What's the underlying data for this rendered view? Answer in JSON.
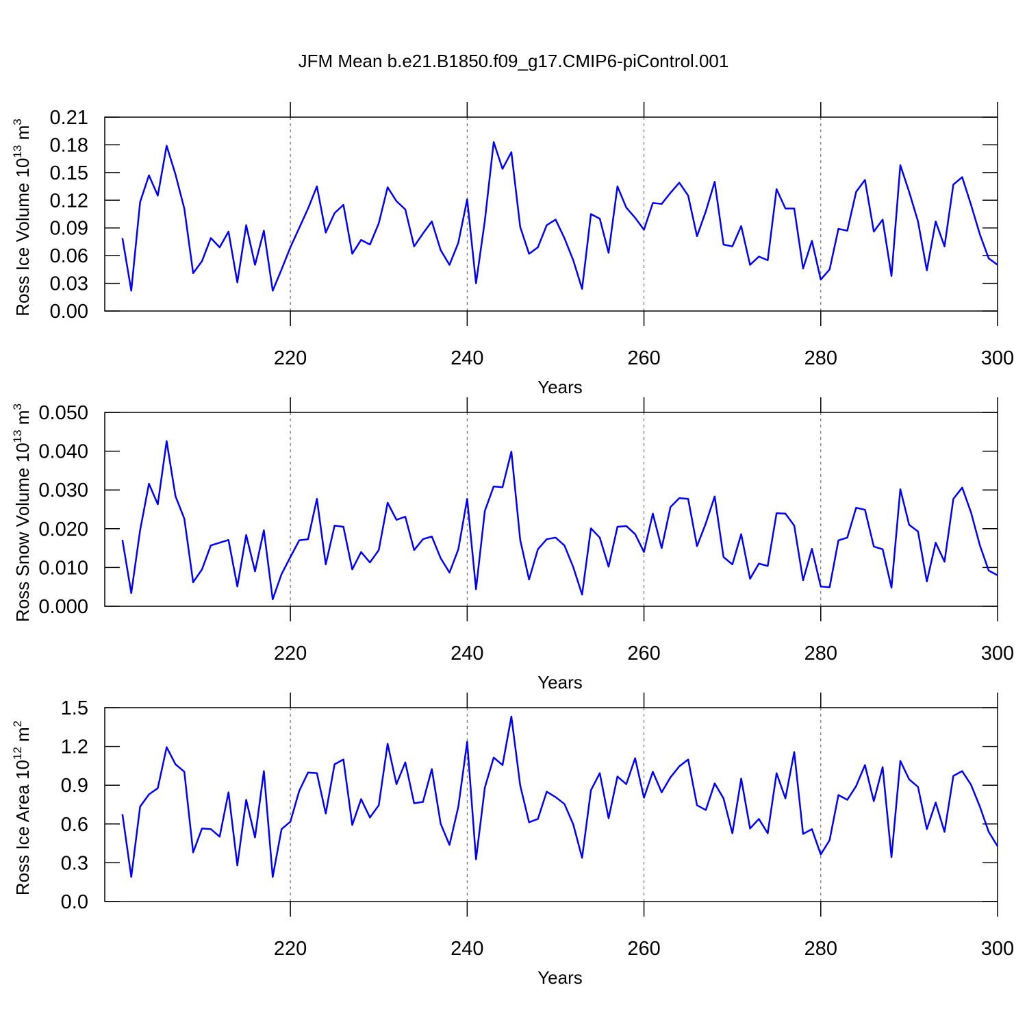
{
  "title": "JFM Mean b.e21.B1850.f09_g17.CMIP6-piControl.001",
  "chart_data": [
    {
      "type": "line",
      "ylabel": [
        "Ross Ice Volume 10",
        "13",
        " m",
        "3"
      ],
      "xlabel": "Years",
      "x": [
        201,
        202,
        203,
        204,
        205,
        206,
        207,
        208,
        209,
        210,
        211,
        212,
        213,
        214,
        215,
        216,
        217,
        218,
        219,
        220,
        221,
        222,
        223,
        224,
        225,
        226,
        227,
        228,
        229,
        230,
        231,
        232,
        233,
        234,
        235,
        236,
        237,
        238,
        239,
        240,
        241,
        242,
        243,
        244,
        245,
        246,
        247,
        248,
        249,
        250,
        251,
        252,
        253,
        254,
        255,
        256,
        257,
        258,
        259,
        260,
        261,
        262,
        263,
        264,
        265,
        266,
        267,
        268,
        269,
        270,
        271,
        272,
        273,
        274,
        275,
        276,
        277,
        278,
        279,
        280,
        281,
        282,
        283,
        284,
        285,
        286,
        287,
        288,
        289,
        290,
        291,
        292,
        293,
        294,
        295,
        296,
        297,
        298,
        299,
        300
      ],
      "series": [
        {
          "color": "#0000ff",
          "values": [
            0.079,
            0.022,
            0.118,
            0.147,
            0.125,
            0.179,
            0.148,
            0.111,
            0.041,
            0.054,
            0.079,
            0.069,
            0.086,
            0.031,
            0.093,
            0.05,
            0.087,
            0.022,
            0.045,
            0.069,
            0.09,
            0.111,
            0.135,
            0.085,
            0.106,
            0.115,
            0.062,
            0.077,
            0.072,
            0.095,
            0.134,
            0.119,
            0.11,
            0.07,
            0.084,
            0.097,
            0.066,
            0.05,
            0.074,
            0.121,
            0.03,
            0.098,
            0.183,
            0.154,
            0.172,
            0.091,
            0.062,
            0.069,
            0.093,
            0.099,
            0.079,
            0.055,
            0.024,
            0.105,
            0.1,
            0.063,
            0.135,
            0.112,
            0.101,
            0.088,
            0.117,
            0.116,
            0.128,
            0.139,
            0.125,
            0.081,
            0.108,
            0.14,
            0.072,
            0.07,
            0.092,
            0.05,
            0.059,
            0.055,
            0.132,
            0.111,
            0.111,
            0.046,
            0.076,
            0.034,
            0.045,
            0.089,
            0.087,
            0.129,
            0.142,
            0.086,
            0.099,
            0.038,
            0.158,
            0.129,
            0.097,
            0.044,
            0.097,
            0.07,
            0.137,
            0.145,
            0.115,
            0.083,
            0.057,
            0.05
          ]
        }
      ],
      "xlim": [
        199,
        300
      ],
      "xticks": [
        220,
        240,
        260,
        280,
        300
      ],
      "ylim": [
        0,
        0.21
      ],
      "yticks": [
        {
          "value": 0,
          "label": "0.00"
        },
        0.03,
        0.06,
        0.09,
        0.12,
        0.15,
        0.18,
        0.21
      ],
      "grid": true
    },
    {
      "type": "line",
      "ylabel": [
        "Ross Snow Volume 10",
        "13",
        " m",
        "3"
      ],
      "xlabel": "Years",
      "x": [
        201,
        202,
        203,
        204,
        205,
        206,
        207,
        208,
        209,
        210,
        211,
        212,
        213,
        214,
        215,
        216,
        217,
        218,
        219,
        220,
        221,
        222,
        223,
        224,
        225,
        226,
        227,
        228,
        229,
        230,
        231,
        232,
        233,
        234,
        235,
        236,
        237,
        238,
        239,
        240,
        241,
        242,
        243,
        244,
        245,
        246,
        247,
        248,
        249,
        250,
        251,
        252,
        253,
        254,
        255,
        256,
        257,
        258,
        259,
        260,
        261,
        262,
        263,
        264,
        265,
        266,
        267,
        268,
        269,
        270,
        271,
        272,
        273,
        274,
        275,
        276,
        277,
        278,
        279,
        280,
        281,
        282,
        283,
        284,
        285,
        286,
        287,
        288,
        289,
        290,
        291,
        292,
        293,
        294,
        295,
        296,
        297,
        298,
        299,
        300
      ],
      "series": [
        {
          "color": "#0000ff",
          "values": [
            0.0171,
            0.0034,
            0.0196,
            0.0316,
            0.0263,
            0.0426,
            0.0284,
            0.0226,
            0.0062,
            0.0095,
            0.0157,
            0.0164,
            0.0171,
            0.0051,
            0.0184,
            0.009,
            0.0196,
            0.0018,
            0.0083,
            0.0127,
            0.017,
            0.0173,
            0.0277,
            0.0108,
            0.0208,
            0.0205,
            0.0095,
            0.014,
            0.0113,
            0.0145,
            0.0267,
            0.0223,
            0.0231,
            0.0145,
            0.0173,
            0.018,
            0.0124,
            0.0087,
            0.0147,
            0.0277,
            0.0044,
            0.0246,
            0.0309,
            0.0307,
            0.0399,
            0.0171,
            0.0069,
            0.0147,
            0.0173,
            0.0177,
            0.0157,
            0.0101,
            0.003,
            0.0201,
            0.0177,
            0.0102,
            0.0205,
            0.0207,
            0.0186,
            0.014,
            0.0239,
            0.015,
            0.0256,
            0.0279,
            0.0277,
            0.0155,
            0.0214,
            0.0283,
            0.0127,
            0.0108,
            0.0186,
            0.0071,
            0.011,
            0.0104,
            0.024,
            0.0239,
            0.0208,
            0.0067,
            0.0148,
            0.0051,
            0.0049,
            0.017,
            0.0177,
            0.0254,
            0.0249,
            0.0154,
            0.0147,
            0.0048,
            0.0302,
            0.021,
            0.0193,
            0.0064,
            0.0164,
            0.0115,
            0.0277,
            0.0306,
            0.0242,
            0.0157,
            0.0092,
            0.008
          ]
        }
      ],
      "xlim": [
        199,
        300
      ],
      "xticks": [
        220,
        240,
        260,
        280,
        300
      ],
      "ylim": [
        0,
        0.05
      ],
      "yticks": [
        {
          "value": 0,
          "label": "0.000"
        },
        {
          "value": 0.01,
          "label": "0.010"
        },
        {
          "value": 0.02,
          "label": "0.020"
        },
        {
          "value": 0.03,
          "label": "0.030"
        },
        {
          "value": 0.04,
          "label": "0.040"
        },
        {
          "value": 0.05,
          "label": "0.050"
        }
      ],
      "grid": true
    },
    {
      "type": "line",
      "ylabel": [
        "Ross Ice Area 10",
        "12",
        " m",
        "2"
      ],
      "xlabel": "Years",
      "x": [
        201,
        202,
        203,
        204,
        205,
        206,
        207,
        208,
        209,
        210,
        211,
        212,
        213,
        214,
        215,
        216,
        217,
        218,
        219,
        220,
        221,
        222,
        223,
        224,
        225,
        226,
        227,
        228,
        229,
        230,
        231,
        232,
        233,
        234,
        235,
        236,
        237,
        238,
        239,
        240,
        241,
        242,
        243,
        244,
        245,
        246,
        247,
        248,
        249,
        250,
        251,
        252,
        253,
        254,
        255,
        256,
        257,
        258,
        259,
        260,
        261,
        262,
        263,
        264,
        265,
        266,
        267,
        268,
        269,
        270,
        271,
        272,
        273,
        274,
        275,
        276,
        277,
        278,
        279,
        280,
        281,
        282,
        283,
        284,
        285,
        286,
        287,
        288,
        289,
        290,
        291,
        292,
        293,
        294,
        295,
        296,
        297,
        298,
        299,
        300
      ],
      "series": [
        {
          "color": "#0000ff",
          "values": [
            0.676,
            0.19,
            0.734,
            0.829,
            0.877,
            1.194,
            1.062,
            1.004,
            0.38,
            0.565,
            0.56,
            0.502,
            0.845,
            0.28,
            0.787,
            0.496,
            1.009,
            0.19,
            0.56,
            0.618,
            0.856,
            0.998,
            0.993,
            0.681,
            1.062,
            1.099,
            0.592,
            0.792,
            0.65,
            0.745,
            1.22,
            0.908,
            1.077,
            0.76,
            0.771,
            1.025,
            0.602,
            0.438,
            0.734,
            1.236,
            0.327,
            0.882,
            1.114,
            1.056,
            1.431,
            0.898,
            0.613,
            0.639,
            0.85,
            0.808,
            0.755,
            0.597,
            0.338,
            0.861,
            0.993,
            0.644,
            0.967,
            0.908,
            1.109,
            0.803,
            1.004,
            0.845,
            0.961,
            1.046,
            1.099,
            0.745,
            0.708,
            0.914,
            0.798,
            0.528,
            0.951,
            0.565,
            0.639,
            0.528,
            0.993,
            0.798,
            1.157,
            0.523,
            0.56,
            0.364,
            0.475,
            0.824,
            0.787,
            0.893,
            1.056,
            0.776,
            1.04,
            0.343,
            1.088,
            0.945,
            0.887,
            0.56,
            0.766,
            0.539,
            0.972,
            1.009,
            0.903,
            0.734,
            0.539,
            0.428
          ]
        }
      ],
      "xlim": [
        199,
        300
      ],
      "xticks": [
        220,
        240,
        260,
        280,
        300
      ],
      "ylim": [
        0,
        1.5
      ],
      "yticks": [
        {
          "value": 0,
          "label": "0.0"
        },
        0.3,
        0.6,
        0.9,
        1.2,
        1.5
      ],
      "grid": true
    }
  ]
}
